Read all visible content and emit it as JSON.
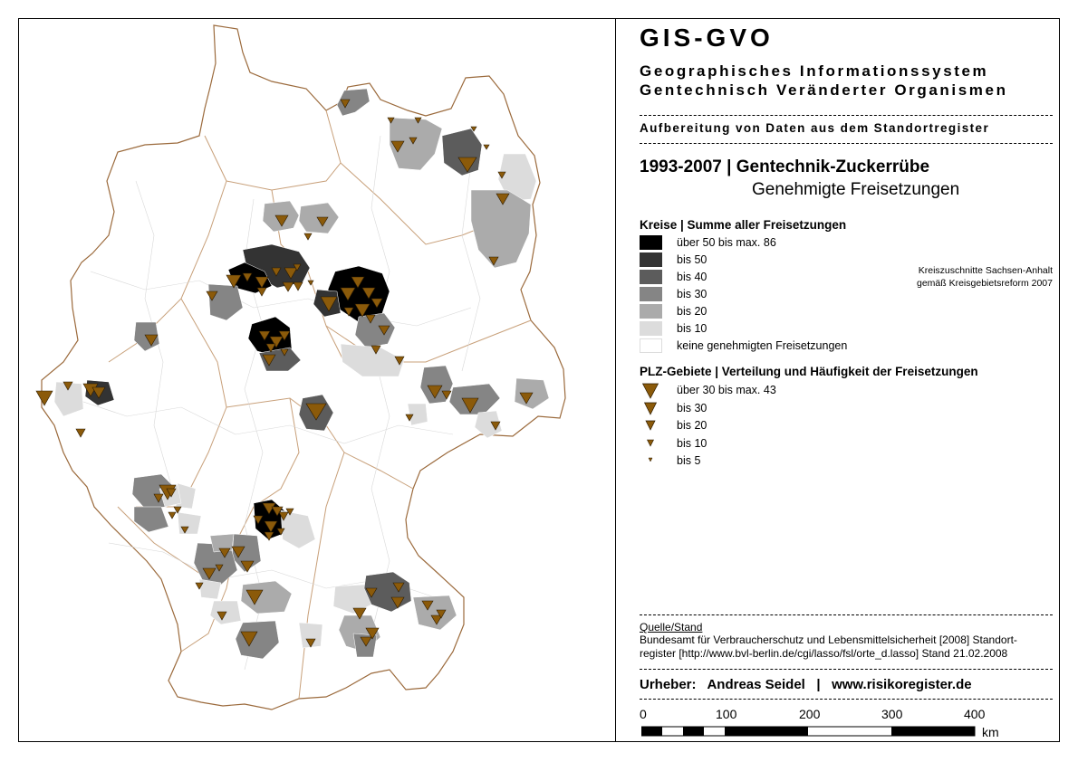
{
  "title": "GIS-GVO",
  "subtitle_line1": "Geographisches Informationssystem",
  "subtitle_line2": "Gentechnisch Veränderter Organismen",
  "source_heading": "Aufbereitung von Daten aus dem Standortregister",
  "map_title": "1993-2007 | Gentechnik-Zuckerrübe",
  "map_subtitle": "Genehmigte Freisetzungen",
  "legend_districts": {
    "heading": "Kreise | Summe aller Freisetzungen",
    "items": [
      {
        "label": "über 50 bis max. 86",
        "color": "#000000"
      },
      {
        "label": "bis 50",
        "color": "#333333"
      },
      {
        "label": "bis 40",
        "color": "#5c5c5c"
      },
      {
        "label": "bis 30",
        "color": "#858585"
      },
      {
        "label": "bis 20",
        "color": "#ababab"
      },
      {
        "label": "bis 10",
        "color": "#dcdcdc"
      },
      {
        "label": "keine genehmigten Freisetzungen",
        "color": "#ffffff"
      }
    ]
  },
  "legend_postcodes": {
    "heading": "PLZ-Gebiete | Verteilung und Häufigkeit der Freisetzungen",
    "marker_color": "#8b5a0a",
    "items": [
      {
        "label": "über 30 bis max. 43"
      },
      {
        "label": "bis 30"
      },
      {
        "label": "bis 20"
      },
      {
        "label": "bis 10"
      },
      {
        "label": "bis 5"
      }
    ]
  },
  "note_line1": "Kreiszuschnitte Sachsen-Anhalt",
  "note_line2": "gemäß Kreisgebietsreform 2007",
  "quelle_label": "Quelle/Stand",
  "source_text": "Bundesamt für Verbraucherschutz und Lebensmittelsicherheit [2008] Standort-register [http://www.bvl-berlin.de/cgi/lasso/fsl/orte_d.lasso] Stand 21.02.2008",
  "author_label": "Urheber:",
  "author_name": "Andreas Seidel",
  "author_sep": "|",
  "author_url": "www.risikoregister.de",
  "scale_ticks": [
    "0",
    "100",
    "200",
    "300",
    "400"
  ],
  "scale_unit": "km",
  "colors": {
    "border": "#8b5a2b",
    "state_border": "#c8a07a",
    "marker": "#8b5a0a"
  }
}
